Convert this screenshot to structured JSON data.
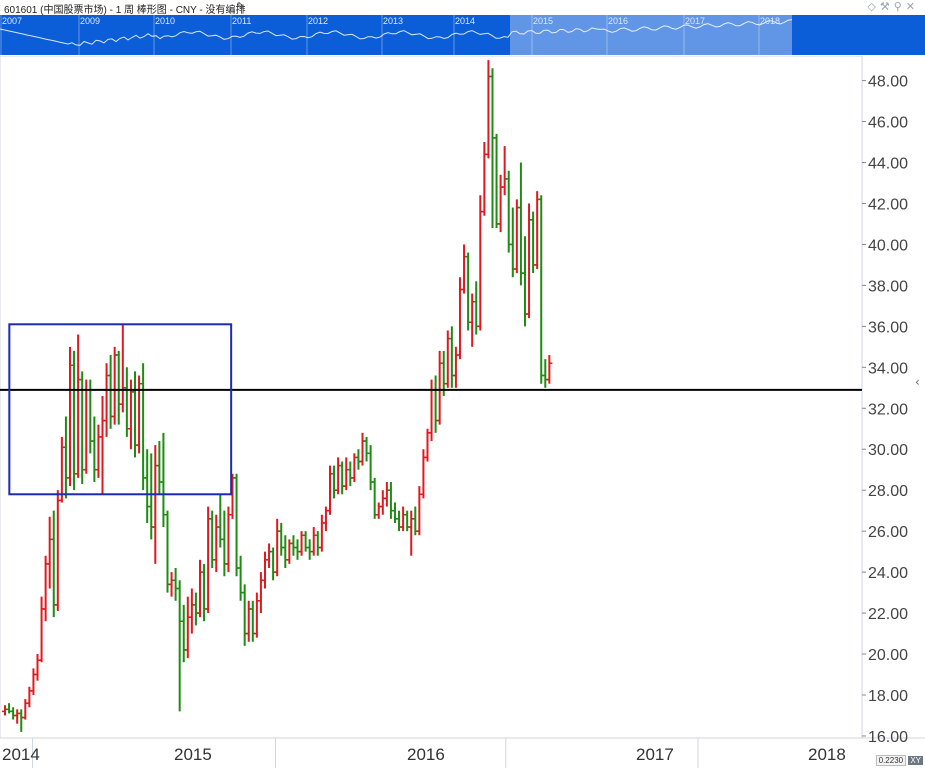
{
  "window": {
    "title": "601601 (中国股票市场) - 1 周 棒形图 - CNY - 没有编排",
    "edit_icon": "pencil-icon",
    "toolbar_icons": [
      "diamond-icon",
      "tools-icon",
      "pin-icon",
      "close-icon"
    ]
  },
  "navigator": {
    "years": [
      "2007",
      "2009",
      "2010",
      "2011",
      "2012",
      "2013",
      "2014",
      "2015",
      "2016",
      "2017",
      "2018"
    ],
    "background_color": "#0b5ed7"
  },
  "status": {
    "value": "0.2230",
    "mode": "XY"
  },
  "scroll_icon": "chevron-left-icon",
  "chart_data": {
    "type": "ohlc",
    "symbol": "601601",
    "interval": "1 周",
    "currency": "CNY",
    "y_axis": {
      "ticks": [
        "16.00",
        "18.00",
        "20.00",
        "22.00",
        "24.00",
        "26.00",
        "28.00",
        "30.00",
        "32.00",
        "34.00",
        "36.00",
        "38.00",
        "40.00",
        "42.00",
        "44.00",
        "46.00",
        "48.00"
      ],
      "range": [
        15.9,
        49.2
      ],
      "position": "right"
    },
    "x_axis": {
      "labels": [
        "2014",
        "2015",
        "2016",
        "2017",
        "2018"
      ],
      "range": [
        2014.0,
        2018.0
      ]
    },
    "colors": {
      "up": "#e0191f",
      "down": "#1e8c12",
      "line": "#000000",
      "box": "#1d2bb3"
    },
    "horizontal_line": {
      "value": 32.9
    },
    "highlight_box": {
      "x0": 2014.03,
      "x1": 2015.08,
      "y0": 27.8,
      "y1": 36.1
    },
    "bars_start": 2014.0,
    "bars_step": 0.01923,
    "ohlc": [
      [
        17.2,
        17.5,
        17.0,
        17.3
      ],
      [
        17.3,
        17.6,
        17.1,
        17.2
      ],
      [
        17.2,
        17.4,
        16.8,
        17.0
      ],
      [
        17.0,
        17.3,
        16.6,
        17.1
      ],
      [
        17.1,
        17.3,
        16.2,
        16.9
      ],
      [
        16.9,
        17.8,
        16.8,
        17.6
      ],
      [
        17.6,
        18.4,
        17.4,
        18.2
      ],
      [
        18.2,
        19.3,
        18.0,
        19.0
      ],
      [
        19.0,
        20.0,
        18.7,
        19.7
      ],
      [
        19.7,
        22.8,
        19.6,
        22.2
      ],
      [
        22.2,
        24.8,
        21.6,
        24.4
      ],
      [
        24.4,
        26.7,
        23.2,
        25.6
      ],
      [
        25.6,
        27.0,
        21.8,
        22.4
      ],
      [
        22.4,
        28.0,
        22.1,
        27.5
      ],
      [
        27.5,
        30.6,
        27.4,
        30.1
      ],
      [
        30.1,
        31.6,
        27.6,
        28.6
      ],
      [
        28.6,
        35.0,
        28.2,
        34.1
      ],
      [
        34.1,
        34.8,
        28.0,
        28.8
      ],
      [
        28.8,
        35.6,
        28.6,
        33.4
      ],
      [
        33.4,
        33.8,
        28.3,
        29.0
      ],
      [
        29.0,
        33.4,
        28.8,
        32.9
      ],
      [
        32.9,
        33.4,
        29.8,
        30.4
      ],
      [
        30.4,
        31.6,
        28.4,
        29.0
      ],
      [
        29.0,
        31.2,
        28.6,
        30.6
      ],
      [
        30.6,
        32.6,
        27.8,
        31.4
      ],
      [
        31.4,
        34.2,
        30.6,
        33.6
      ],
      [
        33.6,
        34.6,
        31.0,
        31.6
      ],
      [
        31.6,
        35.0,
        31.2,
        34.6
      ],
      [
        34.6,
        34.8,
        31.2,
        32.2
      ],
      [
        32.2,
        36.1,
        31.8,
        33.0
      ],
      [
        33.0,
        34.0,
        30.6,
        31.0
      ],
      [
        31.0,
        33.4,
        30.0,
        32.8
      ],
      [
        32.8,
        33.8,
        29.6,
        30.2
      ],
      [
        30.2,
        33.6,
        29.8,
        33.2
      ],
      [
        33.2,
        34.2,
        28.0,
        28.6
      ],
      [
        28.6,
        30.0,
        26.4,
        27.2
      ],
      [
        27.2,
        29.8,
        25.6,
        26.2
      ],
      [
        26.2,
        30.2,
        24.4,
        29.2
      ],
      [
        29.2,
        30.4,
        27.8,
        28.4
      ],
      [
        28.4,
        30.8,
        26.2,
        26.8
      ],
      [
        26.8,
        27.0,
        23.0,
        23.4
      ],
      [
        23.4,
        24.0,
        22.8,
        23.6
      ],
      [
        23.6,
        24.2,
        22.6,
        23.2
      ],
      [
        23.2,
        23.6,
        17.2,
        21.6
      ],
      [
        21.6,
        22.4,
        19.6,
        20.2
      ],
      [
        20.2,
        22.8,
        19.8,
        21.8
      ],
      [
        21.8,
        23.2,
        21.0,
        22.4
      ],
      [
        22.4,
        23.0,
        21.4,
        22.0
      ],
      [
        22.0,
        24.6,
        21.8,
        24.0
      ],
      [
        24.0,
        24.4,
        21.6,
        22.2
      ],
      [
        22.2,
        27.2,
        22.0,
        26.6
      ],
      [
        26.6,
        27.0,
        24.2,
        24.6
      ],
      [
        24.6,
        26.8,
        24.0,
        26.2
      ],
      [
        26.2,
        27.8,
        25.2,
        25.6
      ],
      [
        25.6,
        27.0,
        23.8,
        24.4
      ],
      [
        24.4,
        27.2,
        24.0,
        26.8
      ],
      [
        26.8,
        28.8,
        26.6,
        28.6
      ],
      [
        28.6,
        28.8,
        23.8,
        24.2
      ],
      [
        24.2,
        24.8,
        22.6,
        23.0
      ],
      [
        23.0,
        23.4,
        20.4,
        21.0
      ],
      [
        21.0,
        22.6,
        20.6,
        22.2
      ],
      [
        22.2,
        22.6,
        20.6,
        21.0
      ],
      [
        21.0,
        23.0,
        20.8,
        22.6
      ],
      [
        22.6,
        24.0,
        22.0,
        23.6
      ],
      [
        23.6,
        25.0,
        23.2,
        24.6
      ],
      [
        24.6,
        25.4,
        24.2,
        25.0
      ],
      [
        25.0,
        25.2,
        23.6,
        24.0
      ],
      [
        24.0,
        26.6,
        23.8,
        26.0
      ],
      [
        26.0,
        26.4,
        24.8,
        25.2
      ],
      [
        25.2,
        25.8,
        24.2,
        24.6
      ],
      [
        24.6,
        25.6,
        24.4,
        25.4
      ],
      [
        25.4,
        25.8,
        24.8,
        25.2
      ],
      [
        25.2,
        25.6,
        24.6,
        25.0
      ],
      [
        25.0,
        26.0,
        24.8,
        25.8
      ],
      [
        25.8,
        26.0,
        25.0,
        25.2
      ],
      [
        25.2,
        25.6,
        24.6,
        25.0
      ],
      [
        25.0,
        26.2,
        24.8,
        25.8
      ],
      [
        25.8,
        26.0,
        24.8,
        25.2
      ],
      [
        25.2,
        26.8,
        25.0,
        26.4
      ],
      [
        26.4,
        27.2,
        26.0,
        27.0
      ],
      [
        27.0,
        29.2,
        26.8,
        28.8
      ],
      [
        28.8,
        29.2,
        27.6,
        28.0
      ],
      [
        28.0,
        29.6,
        27.8,
        29.2
      ],
      [
        29.2,
        29.4,
        27.8,
        28.2
      ],
      [
        28.2,
        29.6,
        28.0,
        29.0
      ],
      [
        29.0,
        29.4,
        28.2,
        28.6
      ],
      [
        28.6,
        29.8,
        28.4,
        29.6
      ],
      [
        29.6,
        30.0,
        29.0,
        29.4
      ],
      [
        29.4,
        30.8,
        29.2,
        30.4
      ],
      [
        30.4,
        30.6,
        29.4,
        29.8
      ],
      [
        29.8,
        30.2,
        28.0,
        28.4
      ],
      [
        28.4,
        28.6,
        26.6,
        26.8
      ],
      [
        26.8,
        27.4,
        26.6,
        27.2
      ],
      [
        27.2,
        28.0,
        26.8,
        27.6
      ],
      [
        27.6,
        28.4,
        27.2,
        28.0
      ],
      [
        28.0,
        28.4,
        26.6,
        27.0
      ],
      [
        27.0,
        27.4,
        26.4,
        26.6
      ],
      [
        26.6,
        27.0,
        26.0,
        26.2
      ],
      [
        26.2,
        27.2,
        26.0,
        26.8
      ],
      [
        26.8,
        27.0,
        26.0,
        26.2
      ],
      [
        26.2,
        27.0,
        24.8,
        26.6
      ],
      [
        26.6,
        27.2,
        25.8,
        26.0
      ],
      [
        26.0,
        28.2,
        25.8,
        27.8
      ],
      [
        27.8,
        30.0,
        27.6,
        29.6
      ],
      [
        29.6,
        31.0,
        29.4,
        30.8
      ],
      [
        30.8,
        33.4,
        30.4,
        32.9
      ],
      [
        32.9,
        33.6,
        30.8,
        31.4
      ],
      [
        31.4,
        34.8,
        31.2,
        34.2
      ],
      [
        34.2,
        34.8,
        32.6,
        33.2
      ],
      [
        33.2,
        35.8,
        33.0,
        35.4
      ],
      [
        35.4,
        36.0,
        33.0,
        33.6
      ],
      [
        33.6,
        35.0,
        33.0,
        34.6
      ],
      [
        34.6,
        38.4,
        34.4,
        37.8
      ],
      [
        37.8,
        40.0,
        37.6,
        39.4
      ],
      [
        39.4,
        39.6,
        35.8,
        36.2
      ],
      [
        36.2,
        37.6,
        35.0,
        37.2
      ],
      [
        37.2,
        38.2,
        35.6,
        36.0
      ],
      [
        36.0,
        42.4,
        35.8,
        41.6
      ],
      [
        41.6,
        45.0,
        41.4,
        44.4
      ],
      [
        44.4,
        49.0,
        44.2,
        48.2
      ],
      [
        48.2,
        48.6,
        40.8,
        45.2
      ],
      [
        45.2,
        45.4,
        40.8,
        41.0
      ],
      [
        41.0,
        43.4,
        40.6,
        42.8
      ],
      [
        42.8,
        44.8,
        42.4,
        43.2
      ],
      [
        43.2,
        43.6,
        39.6,
        40.0
      ],
      [
        40.0,
        41.8,
        38.4,
        38.8
      ],
      [
        38.8,
        42.2,
        38.6,
        41.8
      ],
      [
        41.8,
        44.0,
        38.0,
        38.6
      ],
      [
        38.6,
        40.4,
        36.0,
        36.6
      ],
      [
        36.6,
        42.0,
        36.4,
        41.2
      ],
      [
        41.2,
        41.6,
        38.6,
        39.0
      ],
      [
        39.0,
        42.6,
        38.8,
        42.2
      ],
      [
        42.2,
        42.4,
        33.2,
        33.6
      ],
      [
        33.6,
        34.4,
        33.0,
        33.4
      ],
      [
        33.4,
        34.6,
        33.2,
        34.2
      ]
    ]
  }
}
